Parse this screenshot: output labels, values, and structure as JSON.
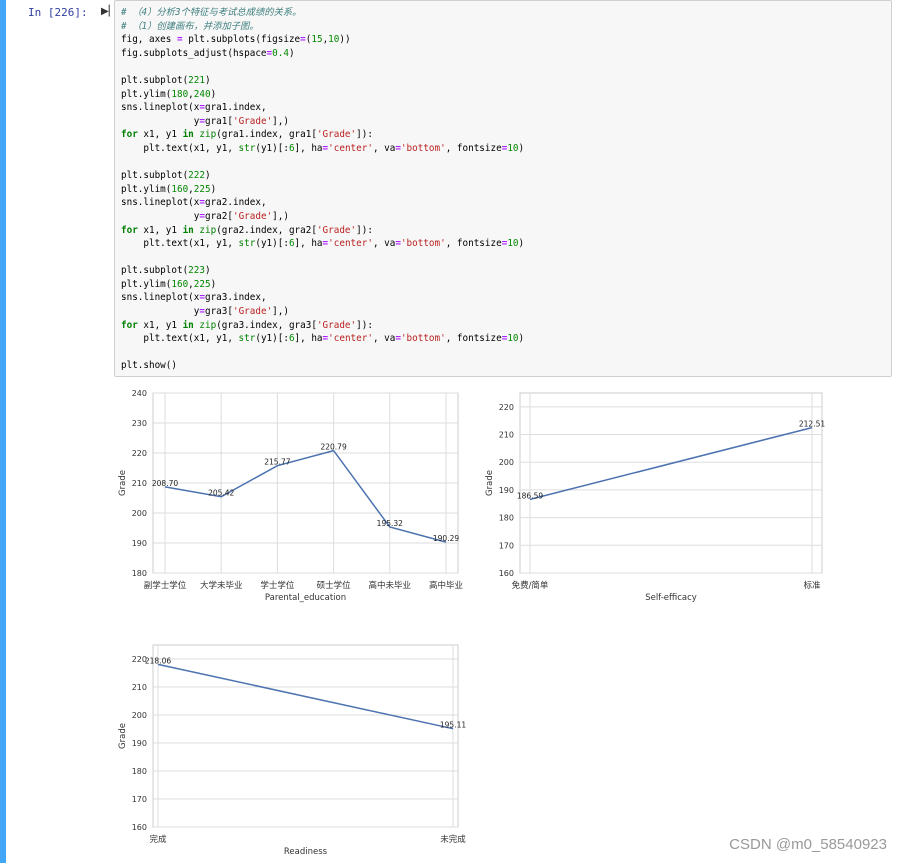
{
  "cell": {
    "prompt": "In  [226]:",
    "run_icon": "run-icon",
    "code_lines": [
      [
        {
          "t": "# （4）分析3个特征与考试总成绩的关系。",
          "c": "cm"
        }
      ],
      [
        {
          "t": "# （1）创建画布，并添加子图。",
          "c": "cm"
        }
      ],
      [
        {
          "t": "fig, axes "
        },
        {
          "t": "=",
          "c": "op"
        },
        {
          "t": " plt.subplots(figsize"
        },
        {
          "t": "=",
          "c": "op"
        },
        {
          "t": "("
        },
        {
          "t": "15",
          "c": "nu"
        },
        {
          "t": ","
        },
        {
          "t": "10",
          "c": "nu"
        },
        {
          "t": "))"
        }
      ],
      [
        {
          "t": "fig.subplots_adjust(hspace"
        },
        {
          "t": "=",
          "c": "op"
        },
        {
          "t": "0.4",
          "c": "nu"
        },
        {
          "t": ")"
        }
      ],
      [
        {
          "t": ""
        }
      ],
      [
        {
          "t": "plt.subplot("
        },
        {
          "t": "221",
          "c": "nu"
        },
        {
          "t": ")"
        }
      ],
      [
        {
          "t": "plt.ylim("
        },
        {
          "t": "180",
          "c": "nu"
        },
        {
          "t": ","
        },
        {
          "t": "240",
          "c": "nu"
        },
        {
          "t": ")"
        }
      ],
      [
        {
          "t": "sns.lineplot(x"
        },
        {
          "t": "=",
          "c": "op"
        },
        {
          "t": "gra1.index,"
        }
      ],
      [
        {
          "t": "             y"
        },
        {
          "t": "=",
          "c": "op"
        },
        {
          "t": "gra1["
        },
        {
          "t": "'Grade'",
          "c": "st"
        },
        {
          "t": "],)"
        }
      ],
      [
        {
          "t": "for",
          "c": "kw"
        },
        {
          "t": " x1, y1 "
        },
        {
          "t": "in",
          "c": "kw"
        },
        {
          "t": " "
        },
        {
          "t": "zip",
          "c": "bi"
        },
        {
          "t": "(gra1.index, gra1["
        },
        {
          "t": "'Grade'",
          "c": "st"
        },
        {
          "t": "]):"
        }
      ],
      [
        {
          "t": "    plt.text(x1, y1, "
        },
        {
          "t": "str",
          "c": "bi"
        },
        {
          "t": "(y1)[:"
        },
        {
          "t": "6",
          "c": "nu"
        },
        {
          "t": "], ha"
        },
        {
          "t": "=",
          "c": "op"
        },
        {
          "t": "'center'",
          "c": "st"
        },
        {
          "t": ", va"
        },
        {
          "t": "=",
          "c": "op"
        },
        {
          "t": "'bottom'",
          "c": "st"
        },
        {
          "t": ", fontsize"
        },
        {
          "t": "=",
          "c": "op"
        },
        {
          "t": "10",
          "c": "nu"
        },
        {
          "t": ")"
        }
      ],
      [
        {
          "t": ""
        }
      ],
      [
        {
          "t": "plt.subplot("
        },
        {
          "t": "222",
          "c": "nu"
        },
        {
          "t": ")"
        }
      ],
      [
        {
          "t": "plt.ylim("
        },
        {
          "t": "160",
          "c": "nu"
        },
        {
          "t": ","
        },
        {
          "t": "225",
          "c": "nu"
        },
        {
          "t": ")"
        }
      ],
      [
        {
          "t": "sns.lineplot(x"
        },
        {
          "t": "=",
          "c": "op"
        },
        {
          "t": "gra2.index,"
        }
      ],
      [
        {
          "t": "             y"
        },
        {
          "t": "=",
          "c": "op"
        },
        {
          "t": "gra2["
        },
        {
          "t": "'Grade'",
          "c": "st"
        },
        {
          "t": "],)"
        }
      ],
      [
        {
          "t": "for",
          "c": "kw"
        },
        {
          "t": " x1, y1 "
        },
        {
          "t": "in",
          "c": "kw"
        },
        {
          "t": " "
        },
        {
          "t": "zip",
          "c": "bi"
        },
        {
          "t": "(gra2.index, gra2["
        },
        {
          "t": "'Grade'",
          "c": "st"
        },
        {
          "t": "]):"
        }
      ],
      [
        {
          "t": "    plt.text(x1, y1, "
        },
        {
          "t": "str",
          "c": "bi"
        },
        {
          "t": "(y1)[:"
        },
        {
          "t": "6",
          "c": "nu"
        },
        {
          "t": "], ha"
        },
        {
          "t": "=",
          "c": "op"
        },
        {
          "t": "'center'",
          "c": "st"
        },
        {
          "t": ", va"
        },
        {
          "t": "=",
          "c": "op"
        },
        {
          "t": "'bottom'",
          "c": "st"
        },
        {
          "t": ", fontsize"
        },
        {
          "t": "=",
          "c": "op"
        },
        {
          "t": "10",
          "c": "nu"
        },
        {
          "t": ")"
        }
      ],
      [
        {
          "t": ""
        }
      ],
      [
        {
          "t": "plt.subplot("
        },
        {
          "t": "223",
          "c": "nu"
        },
        {
          "t": ")"
        }
      ],
      [
        {
          "t": "plt.ylim("
        },
        {
          "t": "160",
          "c": "nu"
        },
        {
          "t": ","
        },
        {
          "t": "225",
          "c": "nu"
        },
        {
          "t": ")"
        }
      ],
      [
        {
          "t": "sns.lineplot(x"
        },
        {
          "t": "=",
          "c": "op"
        },
        {
          "t": "gra3.index,"
        }
      ],
      [
        {
          "t": "             y"
        },
        {
          "t": "=",
          "c": "op"
        },
        {
          "t": "gra3["
        },
        {
          "t": "'Grade'",
          "c": "st"
        },
        {
          "t": "],)"
        }
      ],
      [
        {
          "t": "for",
          "c": "kw"
        },
        {
          "t": " x1, y1 "
        },
        {
          "t": "in",
          "c": "kw"
        },
        {
          "t": " "
        },
        {
          "t": "zip",
          "c": "bi"
        },
        {
          "t": "(gra3.index, gra3["
        },
        {
          "t": "'Grade'",
          "c": "st"
        },
        {
          "t": "]):"
        }
      ],
      [
        {
          "t": "    plt.text(x1, y1, "
        },
        {
          "t": "str",
          "c": "bi"
        },
        {
          "t": "(y1)[:"
        },
        {
          "t": "6",
          "c": "nu"
        },
        {
          "t": "], ha"
        },
        {
          "t": "=",
          "c": "op"
        },
        {
          "t": "'center'",
          "c": "st"
        },
        {
          "t": ", va"
        },
        {
          "t": "=",
          "c": "op"
        },
        {
          "t": "'bottom'",
          "c": "st"
        },
        {
          "t": ", fontsize"
        },
        {
          "t": "=",
          "c": "op"
        },
        {
          "t": "10",
          "c": "nu"
        },
        {
          "t": ")"
        }
      ],
      [
        {
          "t": ""
        }
      ],
      [
        {
          "t": "plt.show()"
        }
      ]
    ]
  },
  "colors": {
    "line": "#4c72b0",
    "grid": "#dddddd",
    "frame": "#cccccc",
    "selection": "#42a5f5"
  },
  "watermark": "CSDN @m0_58540923",
  "chart_data": [
    {
      "type": "line",
      "categories": [
        "副学士学位",
        "大学未毕业",
        "学士学位",
        "硕士学位",
        "高中未毕业",
        "高中毕业"
      ],
      "values": [
        208.7,
        205.42,
        215.77,
        220.79,
        195.32,
        190.29
      ],
      "labels": [
        "208.70",
        "205.42",
        "215.77",
        "220.79",
        "195.32",
        "190.29"
      ],
      "xlabel": "Parental_education",
      "ylabel": "Grade",
      "ylim": [
        180,
        240
      ],
      "yticks": [
        180,
        190,
        200,
        210,
        220,
        230,
        240
      ],
      "grid": true
    },
    {
      "type": "line",
      "categories": [
        "免费/简单",
        "标准"
      ],
      "values": [
        186.59,
        212.51
      ],
      "labels": [
        "186.59",
        "212.51"
      ],
      "xlabel": "Self-efficacy",
      "ylabel": "Grade",
      "ylim": [
        160,
        225
      ],
      "yticks": [
        160,
        170,
        180,
        190,
        200,
        210,
        220
      ],
      "grid": true
    },
    {
      "type": "line",
      "categories": [
        "完成",
        "未完成"
      ],
      "values": [
        218.06,
        195.11
      ],
      "labels": [
        "218.06",
        "195.11"
      ],
      "xlabel": "Readiness",
      "ylabel": "Grade",
      "ylim": [
        160,
        225
      ],
      "yticks": [
        160,
        170,
        180,
        190,
        200,
        210,
        220
      ],
      "grid": true
    }
  ]
}
